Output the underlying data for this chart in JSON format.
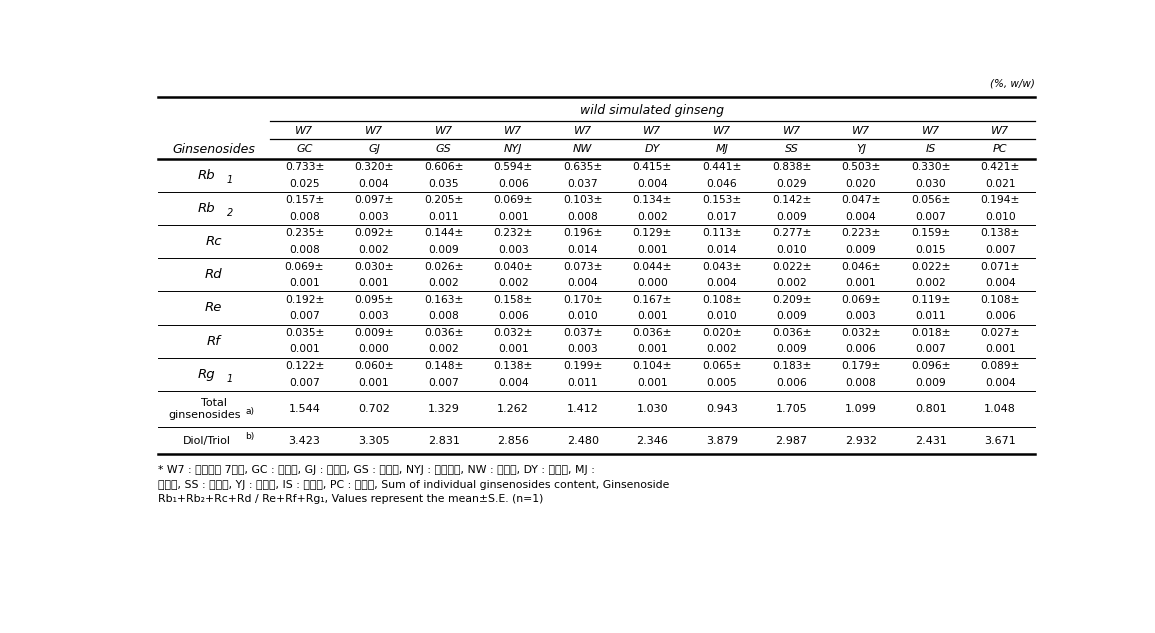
{
  "unit_label": "(%, w/w)",
  "group_header": "wild simulated ginseng",
  "col_headers_w7": [
    "W7",
    "W7",
    "W7",
    "W7",
    "W7",
    "W7",
    "W7",
    "W7",
    "W7",
    "W7",
    "W7"
  ],
  "col_headers_loc": [
    "GC",
    "GJ",
    "GS",
    "NYJ",
    "NW",
    "DY",
    "MJ",
    "SS",
    "YJ",
    "IS",
    "PC"
  ],
  "ginsenoside_col": "Ginsenosides",
  "rows": [
    {
      "label_base": "Rb",
      "label_sub": "1",
      "val_top": [
        "0.733±",
        "0.320±",
        "0.606±",
        "0.594±",
        "0.635±",
        "0.415±",
        "0.441±",
        "0.838±",
        "0.503±",
        "0.330±",
        "0.421±"
      ],
      "val_bot": [
        "0.025",
        "0.004",
        "0.035",
        "0.006",
        "0.037",
        "0.004",
        "0.046",
        "0.029",
        "0.020",
        "0.030",
        "0.021"
      ]
    },
    {
      "label_base": "Rb",
      "label_sub": "2",
      "val_top": [
        "0.157±",
        "0.097±",
        "0.205±",
        "0.069±",
        "0.103±",
        "0.134±",
        "0.153±",
        "0.142±",
        "0.047±",
        "0.056±",
        "0.194±"
      ],
      "val_bot": [
        "0.008",
        "0.003",
        "0.011",
        "0.001",
        "0.008",
        "0.002",
        "0.017",
        "0.009",
        "0.004",
        "0.007",
        "0.010"
      ]
    },
    {
      "label_base": "Rc",
      "label_sub": "",
      "val_top": [
        "0.235±",
        "0.092±",
        "0.144±",
        "0.232±",
        "0.196±",
        "0.129±",
        "0.113±",
        "0.277±",
        "0.223±",
        "0.159±",
        "0.138±"
      ],
      "val_bot": [
        "0.008",
        "0.002",
        "0.009",
        "0.003",
        "0.014",
        "0.001",
        "0.014",
        "0.010",
        "0.009",
        "0.015",
        "0.007"
      ]
    },
    {
      "label_base": "Rd",
      "label_sub": "",
      "val_top": [
        "0.069±",
        "0.030±",
        "0.026±",
        "0.040±",
        "0.073±",
        "0.044±",
        "0.043±",
        "0.022±",
        "0.046±",
        "0.022±",
        "0.071±"
      ],
      "val_bot": [
        "0.001",
        "0.001",
        "0.002",
        "0.002",
        "0.004",
        "0.000",
        "0.004",
        "0.002",
        "0.001",
        "0.002",
        "0.004"
      ]
    },
    {
      "label_base": "Re",
      "label_sub": "",
      "val_top": [
        "0.192±",
        "0.095±",
        "0.163±",
        "0.158±",
        "0.170±",
        "0.167±",
        "0.108±",
        "0.209±",
        "0.069±",
        "0.119±",
        "0.108±"
      ],
      "val_bot": [
        "0.007",
        "0.003",
        "0.008",
        "0.006",
        "0.010",
        "0.001",
        "0.010",
        "0.009",
        "0.003",
        "0.011",
        "0.006"
      ]
    },
    {
      "label_base": "Rf",
      "label_sub": "",
      "val_top": [
        "0.035±",
        "0.009±",
        "0.036±",
        "0.032±",
        "0.037±",
        "0.036±",
        "0.020±",
        "0.036±",
        "0.032±",
        "0.018±",
        "0.027±"
      ],
      "val_bot": [
        "0.001",
        "0.000",
        "0.002",
        "0.001",
        "0.003",
        "0.001",
        "0.002",
        "0.009",
        "0.006",
        "0.007",
        "0.001"
      ]
    },
    {
      "label_base": "Rg",
      "label_sub": "1",
      "val_top": [
        "0.122±",
        "0.060±",
        "0.148±",
        "0.138±",
        "0.199±",
        "0.104±",
        "0.065±",
        "0.183±",
        "0.179±",
        "0.096±",
        "0.089±"
      ],
      "val_bot": [
        "0.007",
        "0.001",
        "0.007",
        "0.004",
        "0.011",
        "0.001",
        "0.005",
        "0.006",
        "0.008",
        "0.009",
        "0.004"
      ]
    },
    {
      "label_line1": "Total",
      "label_line2": "ginsenosides",
      "label_super": "a)",
      "val_single": [
        "1.544",
        "0.702",
        "1.329",
        "1.262",
        "1.412",
        "1.030",
        "0.943",
        "1.705",
        "1.099",
        "0.801",
        "1.048"
      ]
    },
    {
      "label_line1": "Diol/Triol",
      "label_super": "b)",
      "val_single": [
        "3.423",
        "3.305",
        "2.831",
        "2.856",
        "2.480",
        "2.346",
        "3.879",
        "2.987",
        "2.932",
        "2.431",
        "3.671"
      ]
    }
  ],
  "footnote_line1": "* W7 : 곸울채집 7년근, GC : 거창산, GJ : 공주산, GS : 금산산, NYJ : 남양주산, NW : 남원산, DY : 단양산, MJ :",
  "footnote_line2": "무주산, SS : 서산산, YJ : 영주산, IS : 입실산, PC : 평창산,",
  "footnote_line2_en": " Sum of individual ginsenosides content,",
  "footnote_line2_b": " Ginsenoside",
  "footnote_line3": "Rb₁+Rb₂+Rc+Rd / Re+Rf+Rg₁, Values represent the mean±S.E. (n=1)"
}
